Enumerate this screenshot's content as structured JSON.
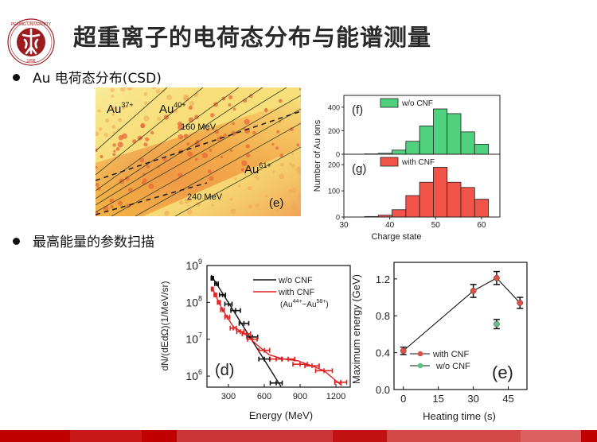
{
  "header": {
    "title": "超重离子的电荷态分布与能谱测量",
    "logo": {
      "name": "peking-university-logo",
      "top_text": "PEKING UNIVERSITY",
      "year": "1898",
      "color": "#9b1b1e"
    }
  },
  "bullets": [
    {
      "text": "Au 电荷态分布(CSD)"
    },
    {
      "text": "最高能量的参数扫描"
    }
  ],
  "csd_image": {
    "labels": {
      "au37": {
        "base": "Au",
        "sup": "37+"
      },
      "au40": {
        "base": "Au",
        "sup": "40+"
      },
      "au61": {
        "base": "Au",
        "sup": "61+"
      },
      "e160": "160 MeV",
      "e240": "240 MeV",
      "panel": "(e)"
    },
    "colors": {
      "background": "#f7e27a",
      "hot": "#ec8a3c"
    }
  },
  "chart_data": [
    {
      "id": "f",
      "type": "bar",
      "panel_label": "(f)",
      "legend": "w/o CNF",
      "color": "#4fd17d",
      "xlabel": "Charge state",
      "ylabel": "Number of Au ions",
      "bin_edges": [
        34.5,
        37.5,
        40.5,
        43.5,
        46.5,
        49.5,
        52.5,
        55.5,
        58.5,
        61.5
      ],
      "values": [
        3,
        8,
        35,
        110,
        240,
        385,
        345,
        190,
        85
      ],
      "xlim": [
        30,
        64
      ],
      "ylim": [
        0,
        500
      ],
      "yticks": [
        0,
        200,
        400
      ],
      "xticks": [
        30,
        40,
        50,
        60
      ]
    },
    {
      "id": "g",
      "type": "bar",
      "panel_label": "(g)",
      "legend": "with CNF",
      "color": "#f2544a",
      "xlabel": "Charge state",
      "ylabel": "Number of Au ions",
      "bin_edges": [
        34.5,
        37.5,
        40.5,
        43.5,
        46.5,
        49.5,
        52.5,
        55.5,
        58.5,
        61.5
      ],
      "values": [
        2,
        7,
        28,
        82,
        133,
        190,
        133,
        113,
        68
      ],
      "xlim": [
        30,
        64
      ],
      "ylim": [
        0,
        240
      ],
      "yticks": [
        0,
        100,
        200
      ],
      "xticks": [
        30,
        40,
        50,
        60
      ]
    },
    {
      "id": "d",
      "type": "line",
      "panel_label": "(d)",
      "xlabel": "Energy (MeV)",
      "ylabel": "dN/(dEdΩ)(1/MeV/sr)",
      "yscale": "log",
      "xlim": [
        120,
        1320
      ],
      "ylim_exp": [
        5.7,
        9
      ],
      "xticks": [
        300,
        600,
        900,
        1200
      ],
      "yticks_exp": [
        6,
        7,
        8,
        9
      ],
      "legend_note": {
        "open": "(Au",
        "sup1": "44+",
        "mid": "~Au",
        "sup2": "58+",
        "close": ")"
      },
      "series": [
        {
          "name": "w/o CNF",
          "color": "#111111",
          "x": [
            165,
            200,
            250,
            300,
            360,
            430,
            500,
            600,
            700
          ],
          "y": [
            450000000.0,
            320000000.0,
            160000000.0,
            90000000.0,
            60000000.0,
            27000000.0,
            11500000.0,
            2900000.0,
            650000.0
          ],
          "xerr": [
            10,
            15,
            25,
            30,
            40,
            40,
            45,
            45,
            50
          ],
          "fit_x": [
            155,
            740
          ],
          "fit_y": [
            550000000.0,
            520000.0
          ]
        },
        {
          "name": "with CNF",
          "color": "#e02020",
          "x": [
            165,
            190,
            220,
            250,
            290,
            340,
            400,
            450,
            500,
            600,
            700,
            800,
            900,
            1000,
            1100,
            1240
          ],
          "y": [
            230000000.0,
            160000000.0,
            100000000.0,
            63000000.0,
            40000000.0,
            20000000.0,
            16000000.0,
            14000000.0,
            10000000.0,
            5000000.0,
            2900000.0,
            2900000.0,
            2100000.0,
            1900000.0,
            1400000.0,
            680000.0
          ],
          "xerr": [
            8,
            10,
            12,
            15,
            20,
            25,
            30,
            35,
            40,
            45,
            50,
            55,
            60,
            60,
            70,
            50
          ],
          "line_x": [
            165,
            250,
            340,
            450,
            540,
            640,
            760,
            880,
            1000,
            1100,
            1250
          ],
          "line_y": [
            240000000.0,
            63000000.0,
            22000000.0,
            13000000.0,
            7000000.0,
            3800000.0,
            2900000.0,
            2600000.0,
            1900000.0,
            1400000.0,
            550000.0
          ]
        }
      ]
    },
    {
      "id": "e",
      "type": "scatter",
      "panel_label": "(e)",
      "xlabel": "Heating time (s)",
      "ylabel": "Maximum energy (GeV)",
      "xlim": [
        -4,
        53
      ],
      "ylim": [
        0,
        1.38
      ],
      "xticks": [
        0,
        15,
        30,
        45
      ],
      "yticks": [
        0.0,
        0.4,
        0.8,
        1.2
      ],
      "ytick_labels": [
        "0.0",
        "0.4",
        "0.8",
        "1.2"
      ],
      "series": [
        {
          "name": "with CNF",
          "color": "#d9534a",
          "connected": true,
          "x": [
            0,
            30,
            40,
            50
          ],
          "y": [
            0.42,
            1.07,
            1.21,
            0.94
          ],
          "yerr": [
            0.04,
            0.07,
            0.07,
            0.06
          ]
        },
        {
          "name": "w/o CNF",
          "color": "#5cc285",
          "connected": false,
          "x": [
            40
          ],
          "y": [
            0.71
          ],
          "yerr": [
            0.05
          ]
        }
      ]
    }
  ],
  "footer_band": {
    "segments": [
      {
        "color": "#c00000",
        "weight": 88
      },
      {
        "color": "#c81818",
        "weight": 90
      },
      {
        "color": "#c00000",
        "weight": 44
      },
      {
        "color": "#cc3636",
        "weight": 196
      },
      {
        "color": "#c41212",
        "weight": 68
      },
      {
        "color": "#d44848",
        "weight": 168
      },
      {
        "color": "#dc6262",
        "weight": 76
      },
      {
        "color": "#c00000",
        "weight": 20
      }
    ]
  }
}
